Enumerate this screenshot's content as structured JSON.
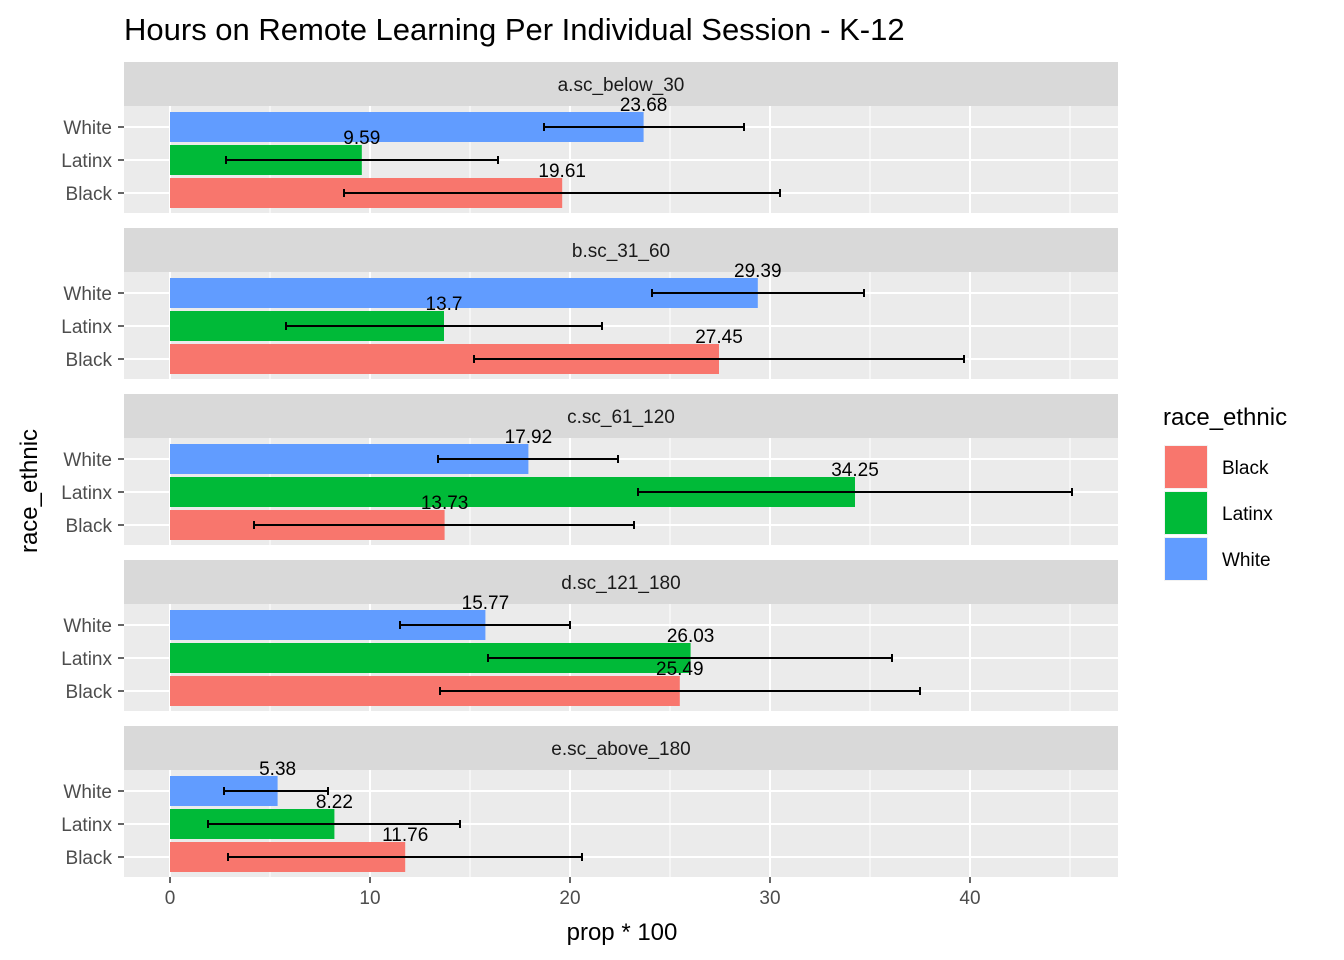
{
  "chart_data": {
    "type": "bar",
    "orientation": "horizontal",
    "facet": "vertical",
    "title": "Hours on Remote Learning Per Individual Session - K-12",
    "xlabel": "prop * 100",
    "ylabel": "race_ethnic",
    "xlim": [
      -2.3,
      47.4
    ],
    "xticks": [
      0,
      10,
      20,
      30,
      40
    ],
    "categories": [
      "White",
      "Latinx",
      "Black"
    ],
    "legend": {
      "title": "race_ethnic",
      "position": "right",
      "entries": [
        {
          "label": "Black",
          "color": "#F8766D"
        },
        {
          "label": "Latinx",
          "color": "#00BA38"
        },
        {
          "label": "White",
          "color": "#619CFF"
        }
      ]
    },
    "grid": true,
    "panels": [
      {
        "name": "a.sc_below_30",
        "bars": [
          {
            "group": "White",
            "value": 23.68,
            "label": "23.68",
            "ci": [
              18.7,
              28.7
            ]
          },
          {
            "group": "Latinx",
            "value": 9.59,
            "label": "9.59",
            "ci": [
              2.8,
              16.4
            ]
          },
          {
            "group": "Black",
            "value": 19.61,
            "label": "19.61",
            "ci": [
              8.7,
              30.5
            ]
          }
        ]
      },
      {
        "name": "b.sc_31_60",
        "bars": [
          {
            "group": "White",
            "value": 29.39,
            "label": "29.39",
            "ci": [
              24.1,
              34.7
            ]
          },
          {
            "group": "Latinx",
            "value": 13.7,
            "label": "13.7",
            "ci": [
              5.8,
              21.6
            ]
          },
          {
            "group": "Black",
            "value": 27.45,
            "label": "27.45",
            "ci": [
              15.2,
              39.7
            ]
          }
        ]
      },
      {
        "name": "c.sc_61_120",
        "bars": [
          {
            "group": "White",
            "value": 17.92,
            "label": "17.92",
            "ci": [
              13.4,
              22.4
            ]
          },
          {
            "group": "Latinx",
            "value": 34.25,
            "label": "34.25",
            "ci": [
              23.4,
              45.1
            ]
          },
          {
            "group": "Black",
            "value": 13.73,
            "label": "13.73",
            "ci": [
              4.2,
              23.2
            ]
          }
        ]
      },
      {
        "name": "d.sc_121_180",
        "bars": [
          {
            "group": "White",
            "value": 15.77,
            "label": "15.77",
            "ci": [
              11.5,
              20.0
            ]
          },
          {
            "group": "Latinx",
            "value": 26.03,
            "label": "26.03",
            "ci": [
              15.9,
              36.1
            ]
          },
          {
            "group": "Black",
            "value": 25.49,
            "label": "25.49",
            "ci": [
              13.5,
              37.5
            ]
          }
        ]
      },
      {
        "name": "e.sc_above_180",
        "bars": [
          {
            "group": "White",
            "value": 5.38,
            "label": "5.38",
            "ci": [
              2.7,
              7.9
            ]
          },
          {
            "group": "Latinx",
            "value": 8.22,
            "label": "8.22",
            "ci": [
              1.9,
              14.5
            ]
          },
          {
            "group": "Black",
            "value": 11.76,
            "label": "11.76",
            "ci": [
              2.9,
              20.6
            ]
          }
        ]
      }
    ]
  }
}
